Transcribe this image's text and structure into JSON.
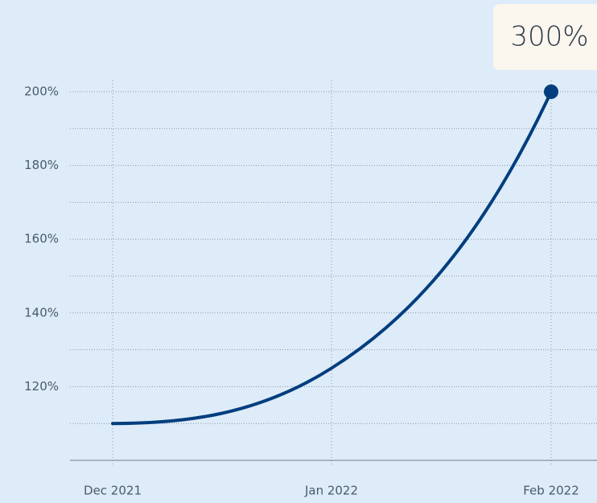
{
  "chart_data": {
    "type": "line",
    "categories": [
      "Dec 2021",
      "Jan 2022",
      "Feb 2022"
    ],
    "values": [
      110,
      125,
      200
    ],
    "color": "#003e7e",
    "ylim": [
      100,
      200
    ],
    "yticks": [
      {
        "value": 120,
        "label": "120%"
      },
      {
        "value": 140,
        "label": "140%"
      },
      {
        "value": 160,
        "label": "160%"
      },
      {
        "value": 180,
        "label": "180%"
      },
      {
        "value": 200,
        "label": "200%"
      }
    ],
    "minor_yticks": [
      110,
      130,
      150,
      170,
      190
    ],
    "grid": true,
    "annotation": "300%"
  }
}
